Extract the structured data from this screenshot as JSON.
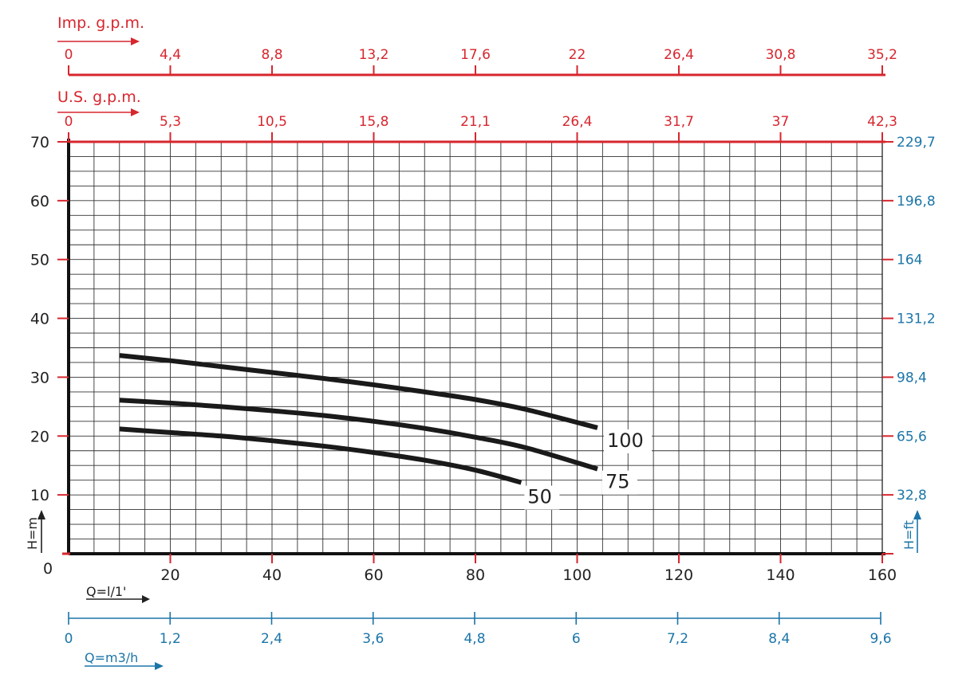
{
  "chart_data": {
    "type": "line",
    "x_axis": {
      "label": "Q=l/1'",
      "range": [
        0,
        160
      ],
      "ticks": [
        0,
        20,
        40,
        60,
        80,
        100,
        120,
        140,
        160
      ]
    },
    "y_axis": {
      "label": "H=m",
      "range": [
        0,
        70
      ],
      "ticks": [
        10,
        20,
        30,
        40,
        50,
        60,
        70
      ],
      "origin_label": "0"
    },
    "secondary_axes": {
      "imp_gpm": {
        "label": "Imp. g.p.m.",
        "tick_labels": [
          "0",
          "4,4",
          "8,8",
          "13,2",
          "17,6",
          "22",
          "26,4",
          "30,8",
          "35,2"
        ]
      },
      "us_gpm": {
        "label": "U.S.  g.p.m.",
        "tick_labels": [
          "0",
          "5,3",
          "10,5",
          "15,8",
          "21,1",
          "26,4",
          "31,7",
          "37",
          "42,3"
        ]
      },
      "m3h": {
        "label": "Q=m3/h",
        "tick_labels": [
          "0",
          "1,2",
          "2,4",
          "3,6",
          "4,8",
          "6",
          "7,2",
          "8,4",
          "9,6"
        ]
      },
      "ft": {
        "label": "H=ft",
        "tick_labels": [
          "32,8",
          "65,6",
          "98,4",
          "131,2",
          "164",
          "196,8",
          "229,7"
        ]
      }
    },
    "grid": true,
    "series": [
      {
        "name": "100",
        "x": [
          10,
          20,
          30,
          40,
          50,
          60,
          70,
          80,
          90,
          104
        ],
        "y": [
          33.7,
          32.8,
          31.8,
          30.8,
          29.8,
          28.7,
          27.5,
          26.2,
          24.5,
          21.4
        ]
      },
      {
        "name": "75",
        "x": [
          10,
          20,
          30,
          40,
          50,
          60,
          70,
          80,
          90,
          104
        ],
        "y": [
          26.1,
          25.6,
          25.0,
          24.3,
          23.5,
          22.5,
          21.3,
          19.8,
          18.0,
          14.4
        ]
      },
      {
        "name": "50",
        "x": [
          10,
          20,
          30,
          40,
          50,
          60,
          70,
          80,
          89
        ],
        "y": [
          21.2,
          20.6,
          20.0,
          19.2,
          18.3,
          17.2,
          15.9,
          14.2,
          12.1
        ]
      }
    ],
    "colors": {
      "imperial_axes": "#d7262e",
      "metric_secondary_axes": "#1b75a8",
      "curves": "#1a1a1a",
      "grid": "#333333"
    }
  }
}
